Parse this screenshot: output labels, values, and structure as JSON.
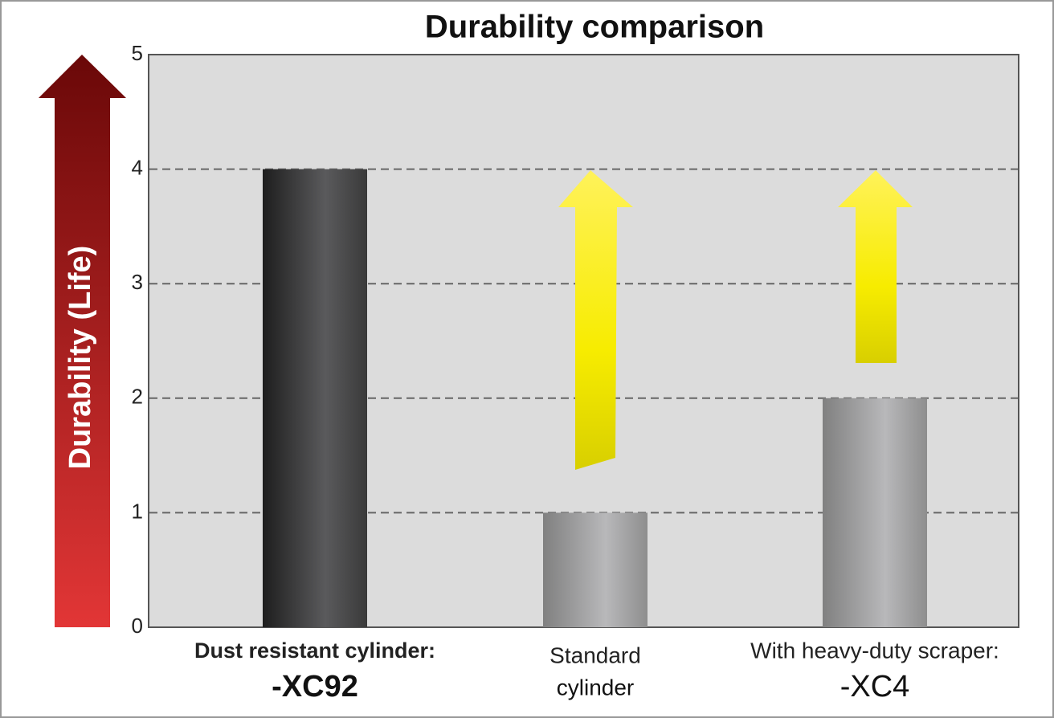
{
  "chart_data": {
    "type": "bar",
    "title": "Durability comparison",
    "y_label": "Durability (Life)",
    "categories": [
      [
        "Dust resistant cylinder:",
        "-XC92"
      ],
      [
        "Standard",
        "cylinder"
      ],
      [
        "With heavy-duty scraper:",
        "-XC4"
      ]
    ],
    "values": [
      4,
      1,
      2
    ],
    "colors": [
      "#3a3a3a",
      "#a0a0a0",
      "#a0a0a0"
    ],
    "ylim": [
      0,
      5
    ],
    "yticks": [
      0,
      1,
      2,
      3,
      4,
      5
    ],
    "grid": true
  }
}
